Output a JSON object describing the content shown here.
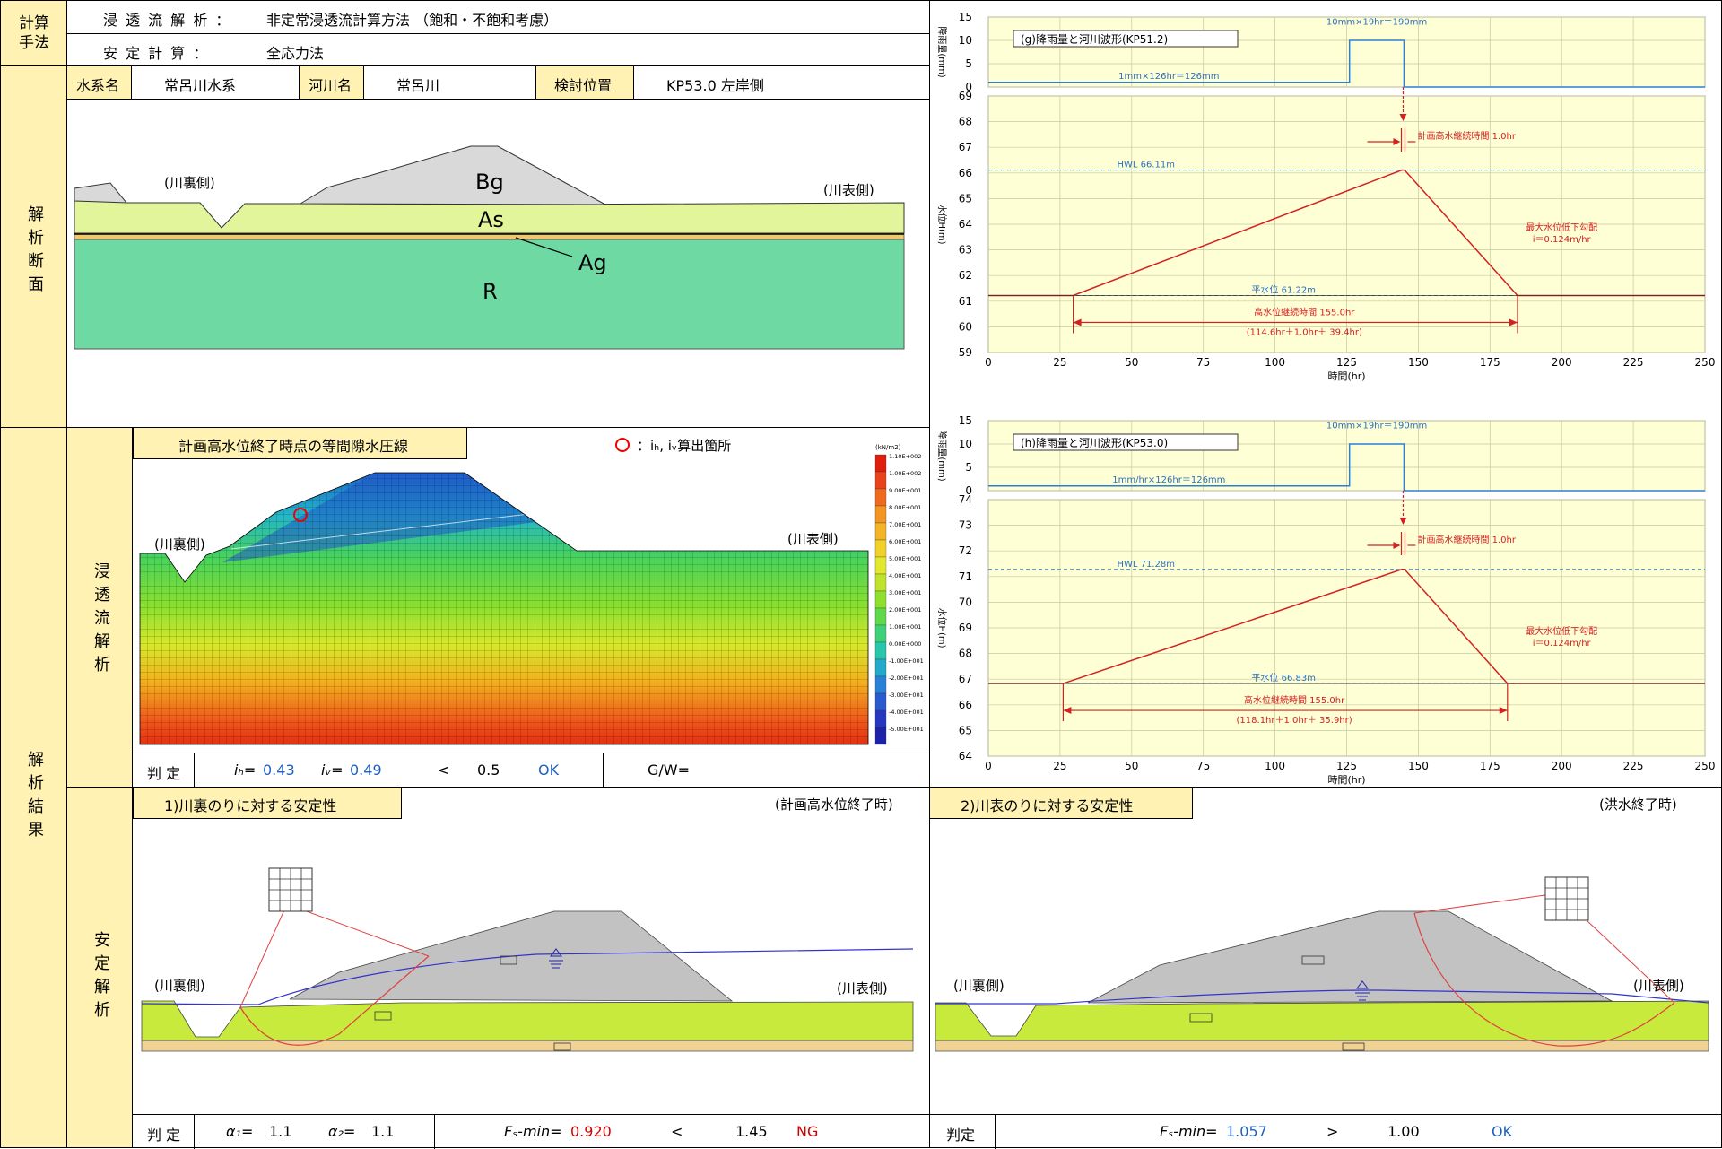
{
  "left_labels": {
    "calc_method": "計算手法",
    "section": "解析断面",
    "result": "解析結果",
    "seepage": "浸透流解析",
    "stability": "安定解析"
  },
  "methods": {
    "row1_label": "浸 透 流 解 析 ：",
    "row1_value": "非定常浸透流計算方法 （飽和・不飽和考慮）",
    "row2_label": "安 定 計 算 ：",
    "row2_value": "全応力法"
  },
  "info": {
    "system_label": "水系名",
    "system_value": "常呂川水系",
    "river_label": "河川名",
    "river_value": "常呂川",
    "pos_label": "検討位置",
    "pos_value": "KP53.0 左岸側"
  },
  "cross_section": {
    "landside": "(川裏側)",
    "riverside": "(川表側)",
    "layers": {
      "bg": "Bg",
      "as": "As",
      "ag": "Ag",
      "r": "R"
    }
  },
  "seepage": {
    "title": "計画高水位終了時点の等間隙水圧線",
    "marker_note": "：iₕ, iᵥ算出箇所",
    "landside": "(川裏側)",
    "riverside": "(川表側)",
    "legend_unit": "(kN/m2)",
    "legend_values": [
      "1.10E+002",
      "1.00E+002",
      "9.00E+001",
      "8.00E+001",
      "7.00E+001",
      "6.00E+001",
      "5.00E+001",
      "4.00E+001",
      "3.00E+001",
      "2.00E+001",
      "1.00E+001",
      "0.00E+000",
      "-1.00E+001",
      "-2.00E+001",
      "-3.00E+001",
      "-4.00E+001",
      "-5.00E+001"
    ],
    "judge_label": "判 定",
    "ih_label": "iₕ=",
    "ih_value": "0.43",
    "iv_label": "iᵥ=",
    "iv_value": "0.49",
    "cmp": "<",
    "limit": "0.5",
    "result": "OK",
    "gw": "G/W="
  },
  "stab1": {
    "title": "1)川裏のりに対する安定性",
    "timing": "(計画高水位終了時)",
    "landside": "(川裏側)",
    "riverside": "(川表側)",
    "judge_label": "判 定",
    "a1_label": "α₁=",
    "a1": "1.1",
    "a2_label": "α₂=",
    "a2": "1.1",
    "fs_label": "Fₛ-min=",
    "fs": "0.920",
    "cmp": "<",
    "limit": "1.45",
    "result": "NG"
  },
  "stab2": {
    "title": "2)川表のりに対する安定性",
    "timing": "(洪水終了時)",
    "landside": "(川裏側)",
    "riverside": "(川表側)",
    "judge_label": "判定",
    "fs_label": "Fₛ-min=",
    "fs": "1.057",
    "cmp": ">",
    "limit": "1.00",
    "result": "OK"
  },
  "chart_data": [
    {
      "type": "line",
      "title": "(g)降雨量と河川波形(KP51.2)",
      "ylabel_rain": "降雨量(mm)",
      "ylabel": "水位H(m)",
      "xlabel": "時間(hr)",
      "x_ticks": [
        0,
        25,
        50,
        75,
        100,
        125,
        150,
        175,
        200,
        225,
        250
      ],
      "rain_ticks": [
        0,
        5,
        10,
        15
      ],
      "y_ticks": [
        59,
        60,
        61,
        62,
        63,
        64,
        65,
        66,
        67,
        68,
        69
      ],
      "xlim": [
        0,
        250
      ],
      "ylim": [
        59,
        69
      ],
      "rain_ylim": [
        0,
        15
      ],
      "rain": {
        "x": [
          0,
          126,
          126,
          145,
          145,
          250
        ],
        "y": [
          1,
          1,
          10,
          10,
          0,
          0
        ],
        "label1": "1mm×126hr＝126mm",
        "label2": "10mm×19hr＝190mm"
      },
      "water": {
        "x": [
          0,
          29.6,
          144.2,
          145.2,
          184.6,
          250
        ],
        "y": [
          61.22,
          61.22,
          66.11,
          66.11,
          61.22,
          61.22
        ]
      },
      "hwl": {
        "y": 66.11,
        "label": "HWL 66.11m"
      },
      "normal": {
        "y": 61.22,
        "label": "平水位 61.22m"
      },
      "ann_duration": "計画高水継続時間 1.0hr",
      "ann_slope1": "最大水位低下勾配",
      "ann_slope2": "i＝0.124m/hr",
      "ann_high1": "高水位継続時間 155.0hr",
      "ann_high2": "(114.6hr＋1.0hr＋ 39.4hr)",
      "x_start": 29.6,
      "x_end": 184.6
    },
    {
      "type": "line",
      "title": "(h)降雨量と河川波形(KP53.0)",
      "ylabel_rain": "降雨量(mm)",
      "ylabel": "水位H(m)",
      "xlabel": "時間(hr)",
      "x_ticks": [
        0,
        25,
        50,
        75,
        100,
        125,
        150,
        175,
        200,
        225,
        250
      ],
      "rain_ticks": [
        0,
        5,
        10,
        15
      ],
      "y_ticks": [
        64,
        65,
        66,
        67,
        68,
        69,
        70,
        71,
        72,
        73,
        74
      ],
      "xlim": [
        0,
        250
      ],
      "ylim": [
        64,
        74
      ],
      "rain_ylim": [
        0,
        15
      ],
      "rain": {
        "x": [
          0,
          126,
          126,
          145,
          145,
          250
        ],
        "y": [
          1,
          1,
          10,
          10,
          0,
          0
        ],
        "label1": "1mm/hr×126hr＝126mm",
        "label2": "10mm×19hr＝190mm"
      },
      "water": {
        "x": [
          0,
          26.1,
          144.2,
          145.2,
          181.1,
          250
        ],
        "y": [
          66.83,
          66.83,
          71.28,
          71.28,
          66.83,
          66.83
        ]
      },
      "hwl": {
        "y": 71.28,
        "label": "HWL 71.28m"
      },
      "normal": {
        "y": 66.83,
        "label": "平水位 66.83m"
      },
      "ann_duration": "計画高水継続時間 1.0hr",
      "ann_slope1": "最大水位低下勾配",
      "ann_slope2": "i＝0.124m/hr",
      "ann_high1": "高水位継続時間 155.0hr",
      "ann_high2": "(118.1hr＋1.0hr＋ 35.9hr)",
      "x_start": 26.1,
      "x_end": 181.1
    }
  ]
}
